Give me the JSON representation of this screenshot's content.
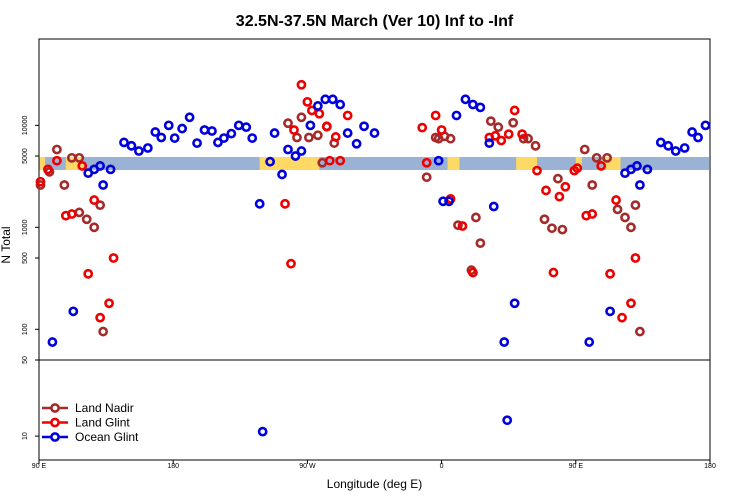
{
  "chart_data": {
    "type": "scatter",
    "title": "32.5N-37.5N March (Ver 10)   Inf to -Inf",
    "xlabel": "Longitude (deg E)",
    "ylabel": "N Total",
    "y_scale": "log",
    "x_ticks": [
      {
        "x": 90,
        "label": "90 E"
      },
      {
        "x": 180,
        "label": "180"
      },
      {
        "x": 270,
        "label": "90 W"
      },
      {
        "x": 360,
        "label": "0"
      },
      {
        "x": 450,
        "label": "90 E"
      },
      {
        "x": 540,
        "label": "180"
      }
    ],
    "xlim": [
      90,
      540
    ],
    "y_ticks_main": [
      100,
      500,
      1000,
      5000,
      10000
    ],
    "y_ticks_low": [
      10,
      50
    ],
    "ylim_main": [
      50,
      60000
    ],
    "ylim_low": [
      7,
      50
    ],
    "legend": {
      "position": "bottom-left"
    },
    "colors": {
      "land": "#ffd966",
      "ocean": "#9ab3d5"
    },
    "series": [
      {
        "name": "Land Nadir",
        "color": "#a52a2a",
        "points": [
          [
            91,
            2600
          ],
          [
            97,
            3500
          ],
          [
            102,
            5800
          ],
          [
            107,
            2600
          ],
          [
            112,
            4800
          ],
          [
            117,
            1400
          ],
          [
            117,
            4800
          ],
          [
            122,
            1200
          ],
          [
            127,
            1000
          ],
          [
            131,
            1650
          ],
          [
            133,
            95
          ],
          [
            257,
            10500
          ],
          [
            263,
            7600
          ],
          [
            266,
            12000
          ],
          [
            271,
            7600
          ],
          [
            277,
            8000
          ],
          [
            280,
            4300
          ],
          [
            283,
            9800
          ],
          [
            288,
            6700
          ],
          [
            350,
            3100
          ],
          [
            356,
            7600
          ],
          [
            358,
            7400
          ],
          [
            362,
            7800
          ],
          [
            366,
            7400
          ],
          [
            371,
            1050
          ],
          [
            380,
            380
          ],
          [
            383,
            1250
          ],
          [
            386,
            700
          ],
          [
            393,
            11000
          ],
          [
            398,
            9600
          ],
          [
            408,
            10600
          ],
          [
            415,
            7400
          ],
          [
            418,
            7400
          ],
          [
            423,
            6300
          ],
          [
            429,
            1200
          ],
          [
            434,
            980
          ],
          [
            438,
            3000
          ],
          [
            441,
            950
          ],
          [
            456,
            5800
          ],
          [
            461,
            2600
          ],
          [
            464,
            4800
          ],
          [
            471,
            4800
          ],
          [
            478,
            1500
          ],
          [
            483,
            1250
          ],
          [
            487,
            1000
          ],
          [
            490,
            1650
          ],
          [
            493,
            95
          ]
        ]
      },
      {
        "name": "Land Glint",
        "color": "#ee0000",
        "points": [
          [
            91,
            2800
          ],
          [
            96,
            3700
          ],
          [
            102,
            4500
          ],
          [
            108,
            1300
          ],
          [
            112,
            1350
          ],
          [
            119,
            4000
          ],
          [
            123,
            350
          ],
          [
            127,
            1850
          ],
          [
            131,
            130
          ],
          [
            137,
            180
          ],
          [
            140,
            500
          ],
          [
            255,
            1700
          ],
          [
            259,
            440
          ],
          [
            261,
            9000
          ],
          [
            266,
            25000
          ],
          [
            270,
            17000
          ],
          [
            273,
            14000
          ],
          [
            278,
            13000
          ],
          [
            283,
            9700
          ],
          [
            285,
            4500
          ],
          [
            289,
            7700
          ],
          [
            292,
            4500
          ],
          [
            297,
            12500
          ],
          [
            347,
            9500
          ],
          [
            350,
            4300
          ],
          [
            356,
            12500
          ],
          [
            360,
            9000
          ],
          [
            366,
            1900
          ],
          [
            374,
            1030
          ],
          [
            381,
            360
          ],
          [
            392,
            7600
          ],
          [
            396,
            7900
          ],
          [
            400,
            7100
          ],
          [
            405,
            8200
          ],
          [
            409,
            14000
          ],
          [
            414,
            8200
          ],
          [
            424,
            3600
          ],
          [
            430,
            2300
          ],
          [
            435,
            360
          ],
          [
            439,
            2000
          ],
          [
            443,
            2500
          ],
          [
            449,
            3600
          ],
          [
            451,
            3800
          ],
          [
            457,
            1300
          ],
          [
            461,
            1350
          ],
          [
            467,
            4000
          ],
          [
            473,
            350
          ],
          [
            477,
            1850
          ],
          [
            481,
            130
          ],
          [
            487,
            180
          ],
          [
            490,
            500
          ]
        ]
      },
      {
        "name": "Ocean Glint",
        "color": "#0000dd",
        "points": [
          [
            99,
            75
          ],
          [
            113,
            150
          ],
          [
            123,
            3400
          ],
          [
            127,
            3700
          ],
          [
            131,
            4000
          ],
          [
            133,
            2600
          ],
          [
            138,
            3700
          ],
          [
            147,
            6800
          ],
          [
            152,
            6300
          ],
          [
            157,
            5600
          ],
          [
            163,
            6000
          ],
          [
            168,
            8600
          ],
          [
            172,
            7600
          ],
          [
            177,
            10000
          ],
          [
            181,
            7500
          ],
          [
            186,
            9300
          ],
          [
            191,
            12000
          ],
          [
            196,
            6700
          ],
          [
            201,
            9000
          ],
          [
            206,
            8800
          ],
          [
            210,
            6800
          ],
          [
            214,
            7500
          ],
          [
            219,
            8300
          ],
          [
            224,
            10000
          ],
          [
            229,
            9600
          ],
          [
            233,
            7500
          ],
          [
            238,
            1700
          ],
          [
            240,
            11
          ],
          [
            245,
            4400
          ],
          [
            248,
            8400
          ],
          [
            253,
            3300
          ],
          [
            257,
            5800
          ],
          [
            262,
            5000
          ],
          [
            266,
            5600
          ],
          [
            272,
            10000
          ],
          [
            277,
            15500
          ],
          [
            282,
            18000
          ],
          [
            287,
            18000
          ],
          [
            292,
            16000
          ],
          [
            297,
            8400
          ],
          [
            303,
            6600
          ],
          [
            308,
            9800
          ],
          [
            315,
            8400
          ],
          [
            358,
            4500
          ],
          [
            361,
            1800
          ],
          [
            365,
            1800
          ],
          [
            370,
            12500
          ],
          [
            376,
            18000
          ],
          [
            381,
            16000
          ],
          [
            386,
            15000
          ],
          [
            392,
            6700
          ],
          [
            395,
            1600
          ],
          [
            402,
            75
          ],
          [
            404,
            14
          ],
          [
            409,
            180
          ],
          [
            459,
            75
          ],
          [
            473,
            150
          ],
          [
            483,
            3400
          ],
          [
            487,
            3700
          ],
          [
            491,
            4000
          ],
          [
            493,
            2600
          ],
          [
            498,
            3700
          ],
          [
            507,
            6800
          ],
          [
            512,
            6300
          ],
          [
            517,
            5600
          ],
          [
            523,
            6000
          ],
          [
            528,
            8600
          ],
          [
            532,
            7600
          ],
          [
            537,
            10000
          ]
        ]
      }
    ]
  }
}
